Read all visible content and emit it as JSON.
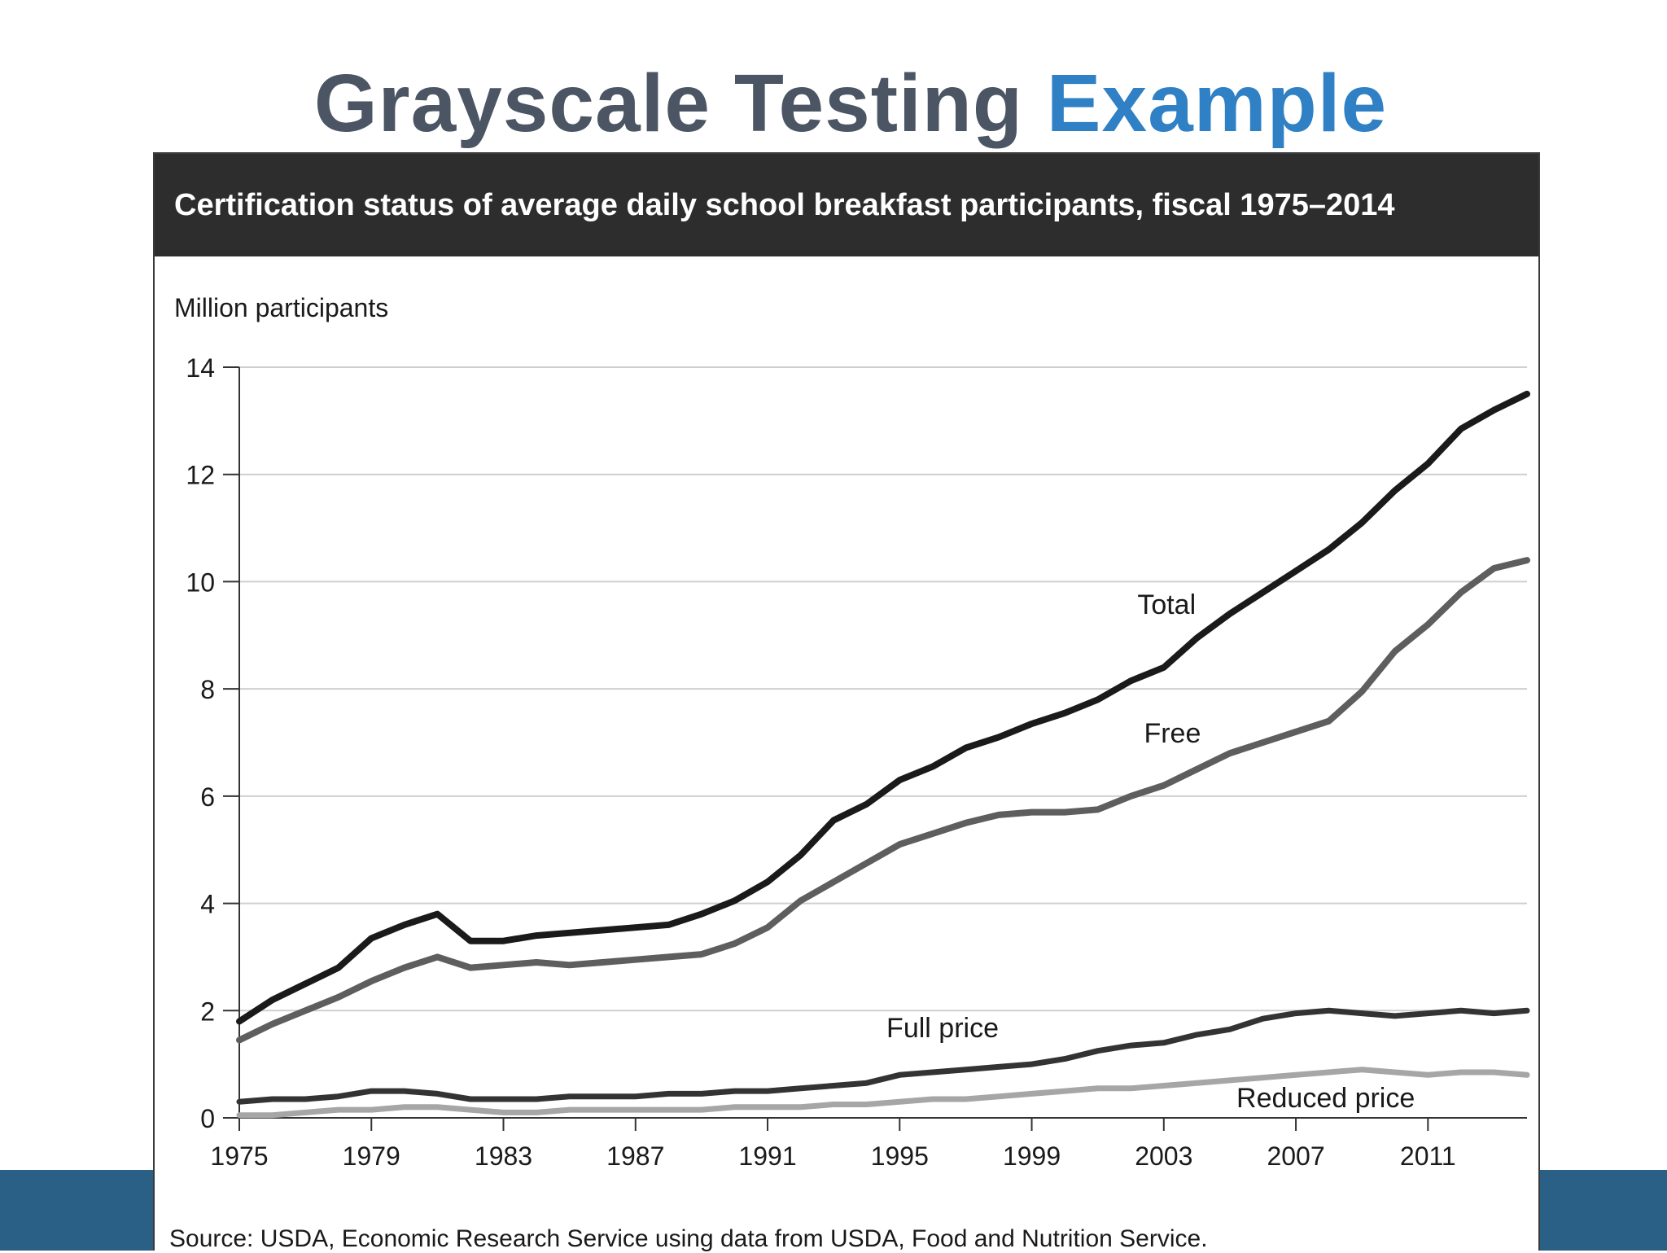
{
  "slide": {
    "title_main": "Grayscale Testing",
    "title_accent": "Example",
    "accent_color": "#2f80c4",
    "bar_color": "#2a5f86"
  },
  "chart_data": {
    "type": "line",
    "title": "Certification status of average daily school breakfast participants, fiscal 1975–2014",
    "ylabel": "Million participants",
    "xlabel": "",
    "ylim": [
      0,
      14
    ],
    "yticks": [
      0,
      2,
      4,
      6,
      8,
      10,
      12,
      14
    ],
    "xlim": [
      1975,
      2014
    ],
    "xticks": [
      1975,
      1979,
      1983,
      1987,
      1991,
      1995,
      1999,
      2003,
      2007,
      2011
    ],
    "grid": true,
    "x": [
      1975,
      1976,
      1977,
      1978,
      1979,
      1980,
      1981,
      1982,
      1983,
      1984,
      1985,
      1986,
      1987,
      1988,
      1989,
      1990,
      1991,
      1992,
      1993,
      1994,
      1995,
      1996,
      1997,
      1998,
      1999,
      2000,
      2001,
      2002,
      2003,
      2004,
      2005,
      2006,
      2007,
      2008,
      2009,
      2010,
      2011,
      2012,
      2013,
      2014
    ],
    "series": [
      {
        "name": "Total",
        "label": "Total",
        "color": "#1a1a1a",
        "values": [
          1.8,
          2.2,
          2.5,
          2.8,
          3.35,
          3.6,
          3.8,
          3.3,
          3.3,
          3.4,
          3.45,
          3.5,
          3.55,
          3.6,
          3.8,
          4.05,
          4.4,
          4.9,
          5.55,
          5.85,
          6.3,
          6.55,
          6.9,
          7.1,
          7.35,
          7.55,
          7.8,
          8.15,
          8.4,
          8.95,
          9.4,
          9.8,
          10.2,
          10.6,
          11.1,
          11.7,
          12.2,
          12.85,
          13.2,
          13.5
        ]
      },
      {
        "name": "Free",
        "label": "Free",
        "color": "#5e5e5e",
        "values": [
          1.45,
          1.75,
          2.0,
          2.25,
          2.55,
          2.8,
          3.0,
          2.8,
          2.85,
          2.9,
          2.85,
          2.9,
          2.95,
          3.0,
          3.05,
          3.25,
          3.55,
          4.05,
          4.4,
          4.75,
          5.1,
          5.3,
          5.5,
          5.65,
          5.7,
          5.7,
          5.75,
          6.0,
          6.2,
          6.5,
          6.8,
          7.0,
          7.2,
          7.4,
          7.95,
          8.7,
          9.2,
          9.8,
          10.25,
          10.4
        ]
      },
      {
        "name": "Full price",
        "label": "Full price",
        "color": "#333333",
        "values": [
          0.3,
          0.35,
          0.35,
          0.4,
          0.5,
          0.5,
          0.45,
          0.35,
          0.35,
          0.35,
          0.4,
          0.4,
          0.4,
          0.45,
          0.45,
          0.5,
          0.5,
          0.55,
          0.6,
          0.65,
          0.8,
          0.85,
          0.9,
          0.95,
          1.0,
          1.1,
          1.25,
          1.35,
          1.4,
          1.55,
          1.65,
          1.85,
          1.95,
          2.0,
          1.95,
          1.9,
          1.95,
          2.0,
          1.95,
          2.0
        ]
      },
      {
        "name": "Reduced price",
        "label": "Reduced price",
        "color": "#a6a6a6",
        "values": [
          0.05,
          0.05,
          0.1,
          0.15,
          0.15,
          0.2,
          0.2,
          0.15,
          0.1,
          0.1,
          0.15,
          0.15,
          0.15,
          0.15,
          0.15,
          0.2,
          0.2,
          0.2,
          0.25,
          0.25,
          0.3,
          0.35,
          0.35,
          0.4,
          0.45,
          0.5,
          0.55,
          0.55,
          0.6,
          0.65,
          0.7,
          0.75,
          0.8,
          0.85,
          0.9,
          0.85,
          0.8,
          0.85,
          0.85,
          0.8
        ]
      }
    ],
    "source": "Source: USDA, Economic Research Service using data from USDA, Food and Nutrition Service."
  }
}
